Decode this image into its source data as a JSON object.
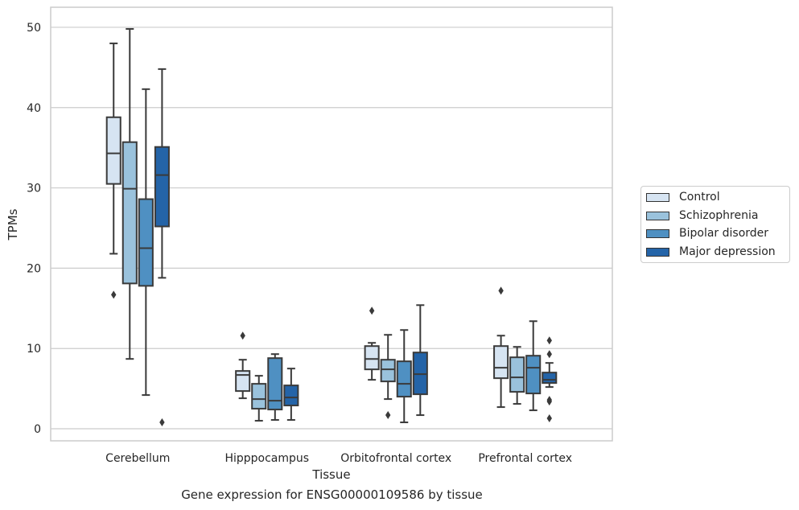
{
  "chart_data": {
    "type": "box",
    "title": "",
    "caption": "Gene expression for ENSG00000109586 by tissue",
    "xlabel": "Tissue",
    "ylabel": "TPMs",
    "ylim": [
      -1.5,
      52.5
    ],
    "yticks": [
      0,
      10,
      20,
      30,
      40,
      50
    ],
    "grid": "horizontal",
    "legend_position": "right",
    "categories": [
      "Cerebellum",
      "Hipppocampus",
      "Orbitofrontal cortex",
      "Prefrontal cortex"
    ],
    "series": [
      {
        "name": "Control",
        "color": "#d6e4f2",
        "boxes": [
          {
            "whisker_low": 21.8,
            "q1": 30.5,
            "median": 34.3,
            "q3": 38.8,
            "whisker_high": 48.0,
            "outliers": [
              16.7
            ]
          },
          {
            "whisker_low": 3.8,
            "q1": 4.7,
            "median": 6.7,
            "q3": 7.2,
            "whisker_high": 8.6,
            "outliers": [
              11.6
            ]
          },
          {
            "whisker_low": 6.1,
            "q1": 7.4,
            "median": 8.7,
            "q3": 10.3,
            "whisker_high": 10.7,
            "outliers": [
              14.7
            ]
          },
          {
            "whisker_low": 2.7,
            "q1": 6.3,
            "median": 7.6,
            "q3": 10.3,
            "whisker_high": 11.6,
            "outliers": [
              17.2
            ]
          }
        ]
      },
      {
        "name": "Schizophrenia",
        "color": "#9ac2dc",
        "boxes": [
          {
            "whisker_low": 8.7,
            "q1": 18.1,
            "median": 29.9,
            "q3": 35.7,
            "whisker_high": 49.8,
            "outliers": []
          },
          {
            "whisker_low": 1.0,
            "q1": 2.5,
            "median": 3.7,
            "q3": 5.6,
            "whisker_high": 6.6,
            "outliers": []
          },
          {
            "whisker_low": 3.7,
            "q1": 5.9,
            "median": 7.4,
            "q3": 8.6,
            "whisker_high": 11.7,
            "outliers": [
              1.7
            ]
          },
          {
            "whisker_low": 3.1,
            "q1": 4.6,
            "median": 6.4,
            "q3": 8.9,
            "whisker_high": 10.2,
            "outliers": []
          }
        ]
      },
      {
        "name": "Bipolar disorder",
        "color": "#4f90c2",
        "boxes": [
          {
            "whisker_low": 4.2,
            "q1": 17.8,
            "median": 22.5,
            "q3": 28.6,
            "whisker_high": 42.3,
            "outliers": []
          },
          {
            "whisker_low": 1.1,
            "q1": 2.4,
            "median": 3.5,
            "q3": 8.8,
            "whisker_high": 9.3,
            "outliers": []
          },
          {
            "whisker_low": 0.8,
            "q1": 4.0,
            "median": 5.6,
            "q3": 8.4,
            "whisker_high": 12.3,
            "outliers": []
          },
          {
            "whisker_low": 2.3,
            "q1": 4.4,
            "median": 7.6,
            "q3": 9.1,
            "whisker_high": 13.4,
            "outliers": []
          }
        ]
      },
      {
        "name": "Major depression",
        "color": "#2464a8",
        "boxes": [
          {
            "whisker_low": 18.8,
            "q1": 25.2,
            "median": 31.6,
            "q3": 35.1,
            "whisker_high": 44.8,
            "outliers": [
              0.8
            ]
          },
          {
            "whisker_low": 1.1,
            "q1": 2.9,
            "median": 3.9,
            "q3": 5.4,
            "whisker_high": 7.5,
            "outliers": []
          },
          {
            "whisker_low": 1.7,
            "q1": 4.3,
            "median": 6.8,
            "q3": 9.5,
            "whisker_high": 15.4,
            "outliers": []
          },
          {
            "whisker_low": 5.2,
            "q1": 5.7,
            "median": 6.1,
            "q3": 7.0,
            "whisker_high": 8.2,
            "outliers": [
              11.0,
              9.3,
              3.6,
              3.4,
              1.3
            ]
          }
        ]
      }
    ]
  }
}
